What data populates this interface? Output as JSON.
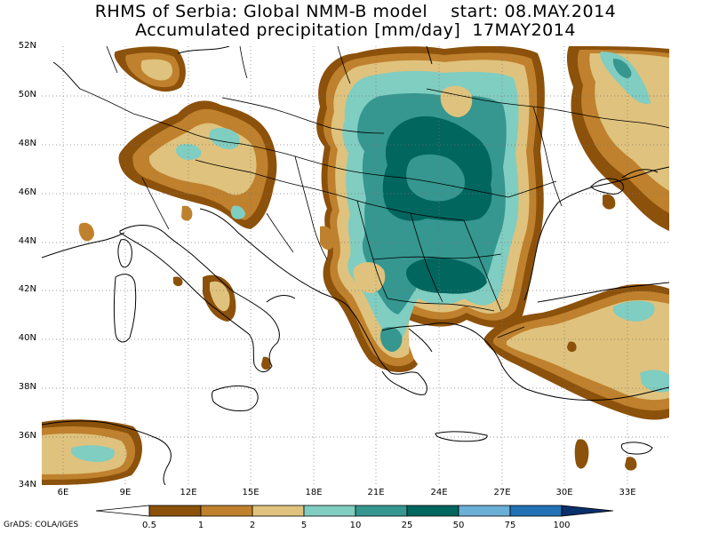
{
  "title": {
    "line1": "RHMS of Serbia: Global NMM-B model    start: 08.MAY.2014",
    "line2": "Accumulated precipitation [mm/day]  17MAY2014"
  },
  "map": {
    "lon_range": [
      5,
      35
    ],
    "lat_range": [
      34,
      52
    ],
    "lat_ticks": [
      "52N",
      "50N",
      "48N",
      "46N",
      "44N",
      "42N",
      "40N",
      "38N",
      "36N",
      "34N"
    ],
    "lon_ticks": [
      "6E",
      "9E",
      "12E",
      "15E",
      "18E",
      "21E",
      "24E",
      "27E",
      "30E",
      "33E"
    ],
    "grid": "dotted"
  },
  "colorbar": {
    "levels": [
      "0.5",
      "1",
      "2",
      "5",
      "10",
      "25",
      "50",
      "75",
      "100"
    ],
    "colors": [
      "#ffffff",
      "#8c510a",
      "#bf812d",
      "#dfc27d",
      "#80cdc1",
      "#35978f",
      "#01665e",
      "#6baed6",
      "#2171b5",
      "#08306b"
    ]
  },
  "credit": "GrADS: COLA/IGES"
}
